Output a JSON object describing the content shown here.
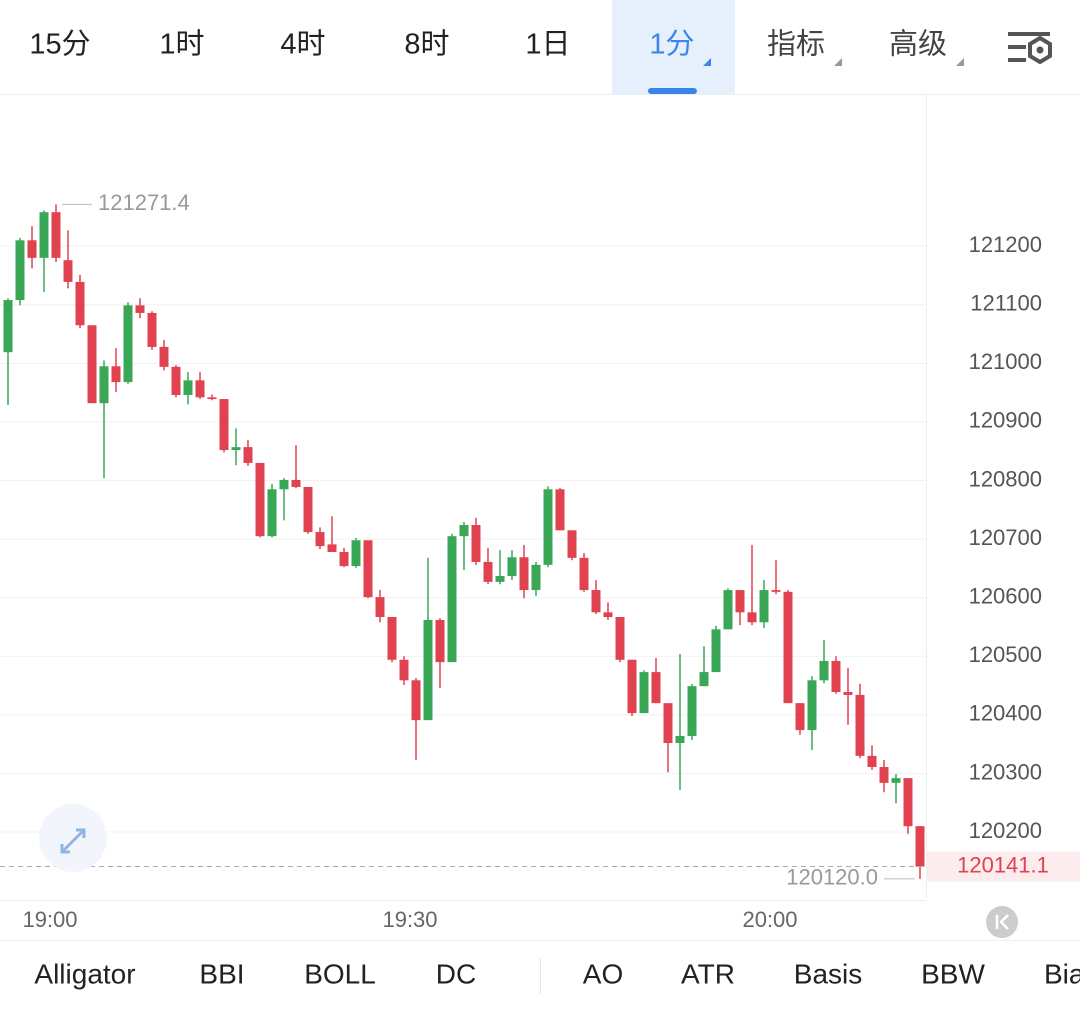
{
  "tabs": [
    "15分",
    "1时",
    "4时",
    "8时",
    "1日",
    "1分"
  ],
  "selected_tab": 5,
  "menus": [
    "指标",
    "高级"
  ],
  "chart_data": {
    "type": "candlestick",
    "categories": [
      null,
      null,
      null,
      "19:00",
      null,
      null,
      null,
      null,
      null,
      null,
      null,
      null,
      null,
      null,
      null,
      null,
      null,
      null,
      null,
      null,
      null,
      null,
      null,
      null,
      null,
      null,
      null,
      null,
      null,
      null,
      null,
      null,
      null,
      "19:30",
      null,
      null,
      null,
      null,
      null,
      null,
      null,
      null,
      null,
      null,
      null,
      null,
      null,
      null,
      null,
      null,
      null,
      null,
      null,
      null,
      null,
      null,
      null,
      null,
      null,
      null,
      null,
      null,
      null,
      "20:00",
      null,
      null,
      null,
      null,
      null,
      null,
      null,
      null,
      null,
      null,
      null,
      null,
      null
    ],
    "open": [
      121019,
      121108,
      121210,
      121180,
      121258,
      121176,
      121139,
      121065,
      120932,
      120995,
      120968,
      121099,
      121086,
      121028,
      120994,
      120946,
      120971,
      120942,
      120939,
      120852,
      120857,
      120830,
      120705,
      120785,
      120801,
      120789,
      120712,
      120691,
      120678,
      120654,
      120698,
      120601,
      120567,
      120494,
      120459,
      120391,
      120562,
      120490,
      120705,
      120724,
      120661,
      120627,
      120637,
      120669,
      120613,
      120656,
      120785,
      120715,
      120668,
      120613,
      120575,
      120567,
      120494,
      120403,
      120473,
      120420,
      120352,
      120364,
      120449,
      120473,
      120546,
      120613,
      120575,
      120558,
      120613,
      120610,
      120420,
      120374,
      120459,
      120492,
      120439,
      120434,
      120330,
      120311,
      120284,
      120292,
      120210
    ],
    "high": [
      121111,
      121214,
      121234,
      121261,
      121271.4,
      121227,
      121151,
      121065,
      121005,
      121026,
      121104,
      121111,
      121089,
      121040,
      120997,
      120985,
      120985,
      120947,
      120939,
      120889,
      120869,
      120830,
      120794,
      120804,
      120860,
      120789,
      120720,
      120739,
      120685,
      120702,
      120698,
      120613,
      120567,
      120500,
      120463,
      120668,
      120565,
      120709,
      120729,
      120736,
      120685,
      120681,
      120681,
      120690,
      120661,
      120790,
      120787,
      120715,
      120676,
      120630,
      120592,
      120567,
      120494,
      120476,
      120497,
      120420,
      120504,
      120453,
      120517,
      120552,
      120616,
      120613,
      120690,
      120630,
      120664,
      120613,
      120420,
      120466,
      120528,
      120500,
      120480,
      120453,
      120348,
      120323,
      120299,
      120292,
      120210
    ],
    "low": [
      120929,
      121099,
      121162,
      121122,
      121173,
      121128,
      121060,
      120932,
      120804,
      120951,
      120965,
      121077,
      121023,
      120988,
      120942,
      120930,
      120939,
      120937,
      120848,
      120826,
      120825,
      120703,
      120703,
      120732,
      120787,
      120709,
      120683,
      120678,
      120652,
      120651,
      120599,
      120558,
      120490,
      120451,
      120323,
      120391,
      120446,
      120490,
      120647,
      120656,
      120623,
      120623,
      120630,
      120599,
      120603,
      120652,
      120715,
      120664,
      120610,
      120572,
      120562,
      120490,
      120398,
      120403,
      120420,
      120302,
      120272,
      120357,
      120449,
      120473,
      120546,
      120553,
      120553,
      120548,
      120606,
      120420,
      120366,
      120340,
      120454,
      120436,
      120383,
      120326,
      120306,
      120268,
      120249,
      120197,
      120120.0
    ],
    "close": [
      121108,
      121210,
      121180,
      121258,
      121180,
      121139,
      121065,
      120932,
      120995,
      120968,
      121099,
      121086,
      121028,
      120994,
      120946,
      120971,
      120942,
      120939,
      120852,
      120857,
      120830,
      120705,
      120785,
      120801,
      120789,
      120712,
      120688,
      120678,
      120654,
      120698,
      120601,
      120567,
      120494,
      120459,
      120391,
      120562,
      120490,
      120705,
      120724,
      120661,
      120627,
      120637,
      120669,
      120613,
      120656,
      120785,
      120715,
      120668,
      120613,
      120575,
      120567,
      120494,
      120403,
      120473,
      120420,
      120352,
      120364,
      120449,
      120473,
      120546,
      120613,
      120575,
      120558,
      120613,
      120610,
      120420,
      120374,
      120459,
      120492,
      120439,
      120434,
      120330,
      120311,
      120284,
      120292,
      120210,
      120141.1
    ],
    "up_color": "#3aa757",
    "down_color": "#e0424f",
    "ylim": [
      120084,
      121458
    ],
    "yticks": [
      120200,
      120300,
      120400,
      120500,
      120600,
      120700,
      120800,
      120900,
      121000,
      121100,
      121200
    ],
    "grid": true,
    "high_marker": {
      "value": 121271.4,
      "label": "121271.4"
    },
    "low_marker": {
      "value": 120120.0,
      "label": "120120.0"
    },
    "last_price": {
      "value": 120141.1,
      "label": "120141.1"
    }
  },
  "indicators": [
    "Alligator",
    "BBI",
    "BOLL",
    "DC"
  ],
  "indicators_more": [
    "AO",
    "ATR",
    "Basis",
    "BBW",
    "Bia"
  ]
}
